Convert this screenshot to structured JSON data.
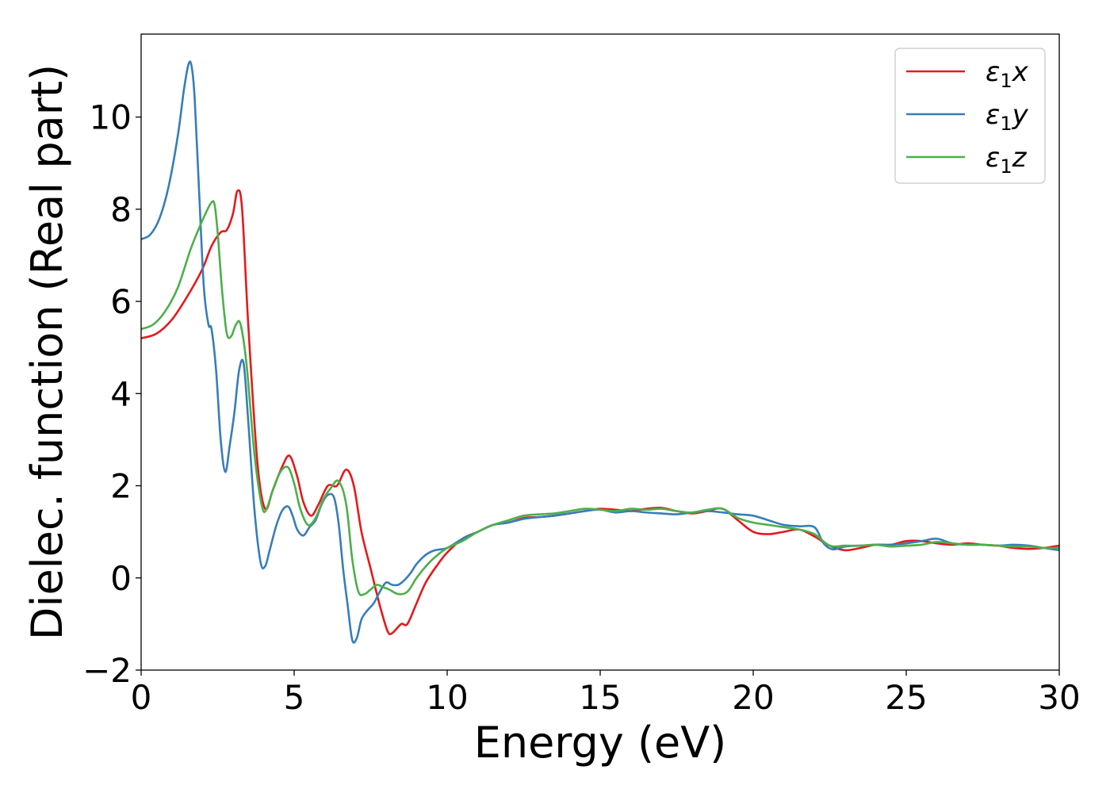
{
  "chart_data": {
    "type": "line",
    "title": "",
    "xlabel": "Energy (eV)",
    "ylabel": "Dielec. function (Real part)",
    "xlim": [
      0,
      30
    ],
    "ylim": [
      -2,
      11.8
    ],
    "xticks": [
      0,
      5,
      10,
      15,
      20,
      25,
      30
    ],
    "yticks": [
      -2,
      0,
      2,
      4,
      6,
      8,
      10
    ],
    "xtick_labels": [
      "0",
      "5",
      "10",
      "15",
      "20",
      "25",
      "30"
    ],
    "ytick_labels": [
      "−2",
      "0",
      "2",
      "4",
      "6",
      "8",
      "10"
    ],
    "grid": false,
    "legend_position": "top-right",
    "series": [
      {
        "name": "ε₁x",
        "legend": {
          "base": "ε",
          "sub": "1",
          "var": "x"
        },
        "color": "#e41a1c",
        "x": [
          0,
          0.5,
          1.0,
          1.5,
          2.0,
          2.3,
          2.6,
          2.8,
          3.0,
          3.15,
          3.3,
          3.5,
          3.8,
          4.05,
          4.3,
          4.6,
          4.85,
          5.1,
          5.3,
          5.55,
          5.8,
          6.1,
          6.4,
          6.7,
          6.95,
          7.2,
          7.5,
          7.8,
          8.05,
          8.2,
          8.5,
          8.7,
          9.0,
          9.3,
          9.7,
          10.0,
          10.5,
          11.0,
          11.5,
          12.0,
          12.5,
          13.0,
          13.5,
          14.0,
          14.5,
          15.0,
          15.5,
          16.0,
          16.5,
          17.0,
          17.5,
          18.0,
          18.5,
          19.0,
          19.5,
          20.0,
          20.5,
          21.0,
          21.5,
          22.0,
          22.5,
          23.0,
          23.5,
          24.0,
          24.5,
          25.0,
          25.5,
          26.0,
          26.5,
          27.0,
          27.5,
          28.0,
          28.5,
          29.0,
          29.5,
          30.0
        ],
        "y": [
          5.2,
          5.3,
          5.6,
          6.1,
          6.7,
          7.2,
          7.5,
          7.55,
          7.9,
          8.4,
          8.0,
          5.5,
          2.5,
          1.5,
          1.9,
          2.4,
          2.65,
          2.2,
          1.65,
          1.35,
          1.6,
          2.0,
          2.0,
          2.35,
          2.0,
          1.0,
          0.2,
          -0.6,
          -1.15,
          -1.2,
          -1.0,
          -1.0,
          -0.55,
          -0.1,
          0.3,
          0.55,
          0.85,
          1.0,
          1.15,
          1.2,
          1.3,
          1.32,
          1.35,
          1.4,
          1.45,
          1.5,
          1.48,
          1.45,
          1.5,
          1.52,
          1.45,
          1.4,
          1.45,
          1.5,
          1.25,
          1.0,
          0.95,
          1.0,
          1.05,
          0.9,
          0.7,
          0.6,
          0.65,
          0.72,
          0.72,
          0.8,
          0.8,
          0.75,
          0.72,
          0.75,
          0.72,
          0.7,
          0.65,
          0.63,
          0.65,
          0.7
        ]
      },
      {
        "name": "ε₁y",
        "legend": {
          "base": "ε",
          "sub": "1",
          "var": "y"
        },
        "color": "#377eb8",
        "x": [
          0,
          0.3,
          0.6,
          0.9,
          1.2,
          1.4,
          1.55,
          1.65,
          1.75,
          1.9,
          2.05,
          2.2,
          2.3,
          2.45,
          2.6,
          2.75,
          2.9,
          3.05,
          3.2,
          3.35,
          3.5,
          3.7,
          3.9,
          4.05,
          4.2,
          4.4,
          4.6,
          4.8,
          4.95,
          5.1,
          5.3,
          5.5,
          5.7,
          5.9,
          6.1,
          6.3,
          6.45,
          6.6,
          6.75,
          6.9,
          7.05,
          7.2,
          7.4,
          7.6,
          7.8,
          8.0,
          8.2,
          8.4,
          8.6,
          8.8,
          9.0,
          9.3,
          9.6,
          10.0,
          10.5,
          11.0,
          11.5,
          12.0,
          12.5,
          13.0,
          13.5,
          14.0,
          14.5,
          15.0,
          15.5,
          16.0,
          16.5,
          17.0,
          17.5,
          18.0,
          18.5,
          19.0,
          19.5,
          20.0,
          20.5,
          21.0,
          21.5,
          22.0,
          22.3,
          22.6,
          23.0,
          23.5,
          24.0,
          24.5,
          25.0,
          25.5,
          26.0,
          26.5,
          27.0,
          27.5,
          28.0,
          28.5,
          29.0,
          29.5,
          30.0
        ],
        "y": [
          7.35,
          7.45,
          7.8,
          8.5,
          9.6,
          10.6,
          11.15,
          11.1,
          10.4,
          8.3,
          6.3,
          5.5,
          5.4,
          4.5,
          3.0,
          2.3,
          2.9,
          3.6,
          4.5,
          4.65,
          3.4,
          1.5,
          0.35,
          0.25,
          0.6,
          1.1,
          1.45,
          1.55,
          1.35,
          1.05,
          0.92,
          1.1,
          1.25,
          1.6,
          1.8,
          1.75,
          1.2,
          0.2,
          -0.6,
          -1.35,
          -1.3,
          -0.9,
          -0.7,
          -0.55,
          -0.3,
          -0.1,
          -0.15,
          -0.15,
          -0.05,
          0.1,
          0.3,
          0.5,
          0.6,
          0.65,
          0.85,
          1.0,
          1.15,
          1.2,
          1.28,
          1.32,
          1.35,
          1.4,
          1.45,
          1.48,
          1.42,
          1.45,
          1.42,
          1.4,
          1.38,
          1.42,
          1.45,
          1.42,
          1.38,
          1.35,
          1.25,
          1.15,
          1.12,
          1.1,
          0.75,
          0.62,
          0.68,
          0.7,
          0.72,
          0.72,
          0.75,
          0.8,
          0.85,
          0.75,
          0.72,
          0.72,
          0.7,
          0.72,
          0.7,
          0.65,
          0.6
        ]
      },
      {
        "name": "ε₁z",
        "legend": {
          "base": "ε",
          "sub": "1",
          "var": "z"
        },
        "color": "#4daf4a",
        "x": [
          0,
          0.4,
          0.8,
          1.2,
          1.6,
          1.9,
          2.1,
          2.3,
          2.4,
          2.5,
          2.65,
          2.8,
          2.95,
          3.1,
          3.25,
          3.45,
          3.7,
          3.95,
          4.1,
          4.3,
          4.55,
          4.8,
          5.0,
          5.2,
          5.45,
          5.7,
          5.95,
          6.2,
          6.45,
          6.7,
          6.9,
          7.1,
          7.3,
          7.5,
          7.7,
          7.9,
          8.1,
          8.4,
          8.7,
          9.0,
          9.3,
          9.6,
          10.0,
          10.5,
          11.0,
          11.5,
          12.0,
          12.5,
          13.0,
          13.5,
          14.0,
          14.5,
          15.0,
          15.5,
          16.0,
          16.5,
          17.0,
          17.5,
          18.0,
          18.5,
          19.0,
          19.5,
          20.0,
          20.5,
          21.0,
          21.5,
          22.0,
          22.5,
          23.0,
          23.5,
          24.0,
          24.5,
          25.0,
          25.5,
          26.0,
          26.5,
          27.0,
          27.5,
          28.0,
          28.5,
          29.0,
          29.5,
          30.0
        ],
        "y": [
          5.4,
          5.5,
          5.8,
          6.3,
          7.1,
          7.6,
          7.9,
          8.15,
          8.1,
          7.5,
          6.2,
          5.3,
          5.25,
          5.5,
          5.5,
          4.6,
          2.7,
          1.55,
          1.5,
          1.9,
          2.3,
          2.4,
          2.05,
          1.5,
          1.15,
          1.3,
          1.7,
          1.95,
          2.1,
          1.6,
          0.4,
          -0.3,
          -0.35,
          -0.25,
          -0.15,
          -0.2,
          -0.25,
          -0.35,
          -0.3,
          0.0,
          0.25,
          0.45,
          0.65,
          0.8,
          1.0,
          1.15,
          1.25,
          1.35,
          1.38,
          1.4,
          1.45,
          1.5,
          1.48,
          1.45,
          1.5,
          1.48,
          1.5,
          1.45,
          1.42,
          1.48,
          1.5,
          1.3,
          1.2,
          1.15,
          1.1,
          1.05,
          0.95,
          0.7,
          0.7,
          0.7,
          0.72,
          0.68,
          0.7,
          0.72,
          0.78,
          0.75,
          0.72,
          0.72,
          0.7,
          0.68,
          0.68,
          0.65,
          0.65
        ]
      }
    ]
  }
}
